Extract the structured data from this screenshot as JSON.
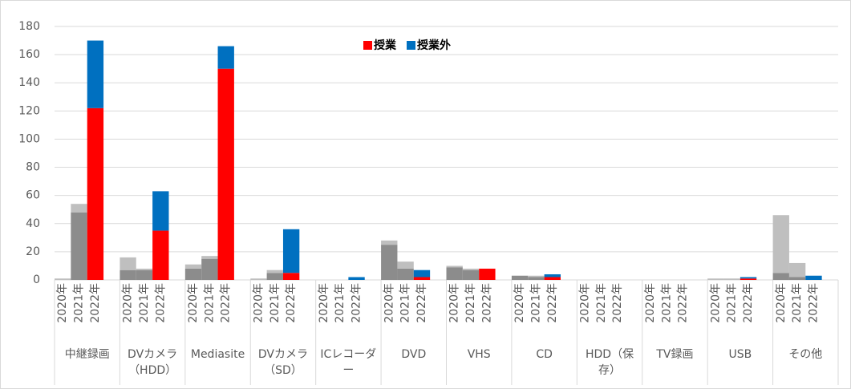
{
  "chart_data": {
    "type": "bar",
    "stacked": true,
    "groups": [
      "中継録画",
      "DVカメラ（HDD）",
      "Mediasite",
      "DVカメラ（SD）",
      "ICレコーダー",
      "DVD",
      "VHS",
      "CD",
      "HDD（保存）",
      "TV録画",
      "USB",
      "その他"
    ],
    "years": [
      "2020年",
      "2021年",
      "2022年"
    ],
    "series": [
      {
        "name": "授業",
        "color": "#ff0000",
        "muted_color": "#8c8c8c",
        "values": [
          0,
          48,
          122,
          7,
          7,
          35,
          8,
          15,
          150,
          0,
          5,
          5,
          0,
          0,
          0,
          25,
          8,
          2,
          9,
          7,
          8,
          3,
          2,
          2,
          0,
          0,
          0,
          0,
          0,
          0,
          0,
          0,
          1,
          5,
          2,
          0
        ]
      },
      {
        "name": "授業外",
        "color": "#0070c0",
        "muted_color": "#bfbfbf",
        "values": [
          1,
          6,
          48,
          9,
          1,
          28,
          3,
          2,
          16,
          1,
          2,
          31,
          0,
          0,
          2,
          3,
          5,
          5,
          1,
          1,
          0,
          0,
          1,
          2,
          0,
          0,
          0,
          0,
          0,
          0,
          1,
          1,
          1,
          41,
          10,
          3
        ]
      }
    ],
    "ylim": [
      0,
      180
    ],
    "yticks": [
      0,
      20,
      40,
      60,
      80,
      100,
      120,
      140,
      160,
      180
    ],
    "grid": true,
    "legend": "top"
  }
}
